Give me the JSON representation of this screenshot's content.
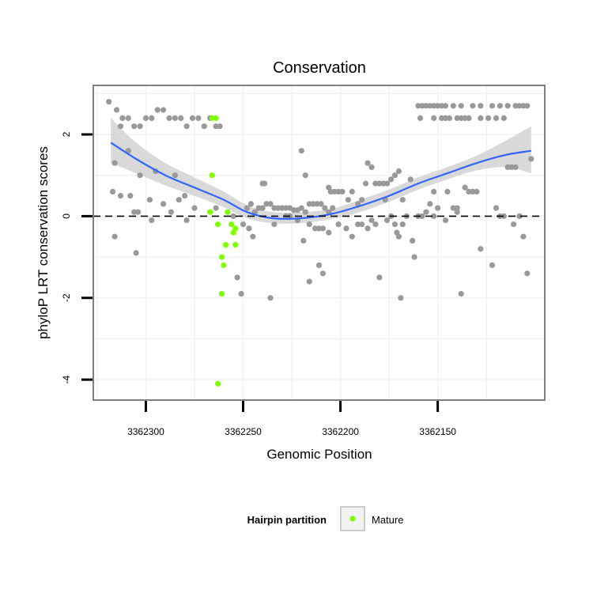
{
  "chart_data": {
    "type": "scatter",
    "title": "Conservation",
    "xlabel": "Genomic Position",
    "ylabel": "phyloP LRT conservation scores",
    "x_reversed": true,
    "xlim": [
      3362327,
      3362095
    ],
    "ylim": [
      -4.5,
      3.2
    ],
    "x_ticks": [
      3362300,
      3362250,
      3362200,
      3362150
    ],
    "x_tick_labels": [
      "3362300",
      "3362250",
      "3362200",
      "3362150"
    ],
    "y_ticks": [
      -4,
      -2,
      0,
      2
    ],
    "y_tick_labels": [
      "-4",
      "-2",
      "0",
      "2"
    ],
    "grid": true,
    "reference_line_y": 0,
    "legend": {
      "title": "Hairpin partition",
      "placement": "bottom",
      "entries": [
        {
          "label": "Mature",
          "color": "#7fff00"
        }
      ]
    },
    "colors": {
      "other": "#999999",
      "mature": "#7fff00",
      "smooth": "#3366ff",
      "band": "#d9d9d9",
      "panel_border": "#7f7f7f",
      "grid": "#f2f2f2"
    },
    "series": [
      {
        "name": "",
        "color": "#999999",
        "points": [
          [
            3362319,
            2.8
          ],
          [
            3362315,
            2.6
          ],
          [
            3362312,
            2.4
          ],
          [
            3362309,
            2.4
          ],
          [
            3362306,
            2.2
          ],
          [
            3362303,
            2.2
          ],
          [
            3362300,
            2.4
          ],
          [
            3362297,
            2.4
          ],
          [
            3362294,
            2.6
          ],
          [
            3362291,
            2.6
          ],
          [
            3362288,
            2.4
          ],
          [
            3362285,
            2.4
          ],
          [
            3362282,
            2.4
          ],
          [
            3362279,
            2.2
          ],
          [
            3362276,
            2.4
          ],
          [
            3362273,
            2.4
          ],
          [
            3362270,
            2.2
          ],
          [
            3362267,
            2.4
          ],
          [
            3362264,
            2.2
          ],
          [
            3362262,
            2.2
          ],
          [
            3362313,
            2.2
          ],
          [
            3362309,
            1.6
          ],
          [
            3362316,
            1.3
          ],
          [
            3362303,
            1.0
          ],
          [
            3362295,
            1.1
          ],
          [
            3362285,
            1.0
          ],
          [
            3362313,
            0.5
          ],
          [
            3362317,
            0.6
          ],
          [
            3362308,
            0.5
          ],
          [
            3362298,
            0.4
          ],
          [
            3362291,
            0.3
          ],
          [
            3362283,
            0.4
          ],
          [
            3362280,
            0.5
          ],
          [
            3362275,
            0.2
          ],
          [
            3362267,
            0.1
          ],
          [
            3362306,
            0.1
          ],
          [
            3362304,
            0.1
          ],
          [
            3362297,
            -0.1
          ],
          [
            3362287,
            0.1
          ],
          [
            3362279,
            -0.1
          ],
          [
            3362316,
            -0.5
          ],
          [
            3362305,
            -0.9
          ],
          [
            3362264,
            0.2
          ],
          [
            3362248,
            0.2
          ],
          [
            3362246,
            0.3
          ],
          [
            3362244,
            0.1
          ],
          [
            3362242,
            0.2
          ],
          [
            3362240,
            0.2
          ],
          [
            3362238,
            0.3
          ],
          [
            3362236,
            0.3
          ],
          [
            3362234,
            0.2
          ],
          [
            3362232,
            0.2
          ],
          [
            3362230,
            0.2
          ],
          [
            3362228,
            0.2
          ],
          [
            3362226,
            0.2
          ],
          [
            3362224,
            0.15
          ],
          [
            3362222,
            0.15
          ],
          [
            3362220,
            0.2
          ],
          [
            3362218,
            0.1
          ],
          [
            3362216,
            0.3
          ],
          [
            3362214,
            0.3
          ],
          [
            3362212,
            0.3
          ],
          [
            3362210,
            0.3
          ],
          [
            3362208,
            0.2
          ],
          [
            3362206,
            0.1
          ],
          [
            3362204,
            0.2
          ],
          [
            3362255,
            0.0
          ],
          [
            3362250,
            -0.2
          ],
          [
            3362247,
            -0.3
          ],
          [
            3362245,
            -0.5
          ],
          [
            3362240,
            0.8
          ],
          [
            3362239,
            0.8
          ],
          [
            3362234,
            -0.2
          ],
          [
            3362228,
            0.0
          ],
          [
            3362226,
            0.0
          ],
          [
            3362222,
            -0.1
          ],
          [
            3362220,
            1.6
          ],
          [
            3362219,
            -0.6
          ],
          [
            3362218,
            1.0
          ],
          [
            3362216,
            -0.2
          ],
          [
            3362213,
            -0.3
          ],
          [
            3362211,
            -0.3
          ],
          [
            3362209,
            -0.3
          ],
          [
            3362206,
            -0.4
          ],
          [
            3362253,
            -1.5
          ],
          [
            3362251,
            -1.9
          ],
          [
            3362236,
            -2.0
          ],
          [
            3362216,
            -1.6
          ],
          [
            3362211,
            -1.2
          ],
          [
            3362209,
            -1.4
          ],
          [
            3362206,
            0.7
          ],
          [
            3362205,
            0.6
          ],
          [
            3362203,
            0.6
          ],
          [
            3362201,
            0.6
          ],
          [
            3362199,
            0.6
          ],
          [
            3362196,
            0.4
          ],
          [
            3362194,
            0.6
          ],
          [
            3362191,
            0.3
          ],
          [
            3362189,
            0.4
          ],
          [
            3362187,
            0.8
          ],
          [
            3362186,
            1.3
          ],
          [
            3362184,
            1.2
          ],
          [
            3362182,
            0.8
          ],
          [
            3362180,
            0.8
          ],
          [
            3362178,
            0.8
          ],
          [
            3362176,
            0.8
          ],
          [
            3362174,
            0.9
          ],
          [
            3362172,
            1.0
          ],
          [
            3362170,
            1.1
          ],
          [
            3362168,
            0.4
          ],
          [
            3362201,
            -0.2
          ],
          [
            3362197,
            -0.3
          ],
          [
            3362194,
            -0.5
          ],
          [
            3362191,
            -0.2
          ],
          [
            3362189,
            -0.2
          ],
          [
            3362186,
            -0.3
          ],
          [
            3362184,
            -0.1
          ],
          [
            3362182,
            -0.2
          ],
          [
            3362180,
            -1.5
          ],
          [
            3362177,
            0.4
          ],
          [
            3362176,
            -0.1
          ],
          [
            3362174,
            0.0
          ],
          [
            3362172,
            -0.2
          ],
          [
            3362171,
            -0.4
          ],
          [
            3362170,
            -0.5
          ],
          [
            3362168,
            -0.2
          ],
          [
            3362166,
            0.0
          ],
          [
            3362164,
            0.9
          ],
          [
            3362163,
            -0.6
          ],
          [
            3362162,
            -1.0
          ],
          [
            3362169,
            -2.0
          ],
          [
            3362160,
            2.7
          ],
          [
            3362158,
            2.7
          ],
          [
            3362156,
            2.7
          ],
          [
            3362154,
            2.7
          ],
          [
            3362152,
            2.7
          ],
          [
            3362150,
            2.7
          ],
          [
            3362148,
            2.7
          ],
          [
            3362146,
            2.7
          ],
          [
            3362142,
            2.7
          ],
          [
            3362138,
            2.7
          ],
          [
            3362132,
            2.7
          ],
          [
            3362128,
            2.7
          ],
          [
            3362122,
            2.7
          ],
          [
            3362118,
            2.7
          ],
          [
            3362114,
            2.7
          ],
          [
            3362110,
            2.7
          ],
          [
            3362108,
            2.7
          ],
          [
            3362106,
            2.7
          ],
          [
            3362104,
            2.7
          ],
          [
            3362159,
            2.4
          ],
          [
            3362152,
            2.4
          ],
          [
            3362148,
            2.4
          ],
          [
            3362146,
            2.4
          ],
          [
            3362144,
            2.4
          ],
          [
            3362140,
            2.4
          ],
          [
            3362138,
            2.4
          ],
          [
            3362136,
            2.4
          ],
          [
            3362134,
            2.4
          ],
          [
            3362128,
            2.4
          ],
          [
            3362124,
            2.4
          ],
          [
            3362120,
            2.4
          ],
          [
            3362116,
            2.4
          ],
          [
            3362160,
            0.0
          ],
          [
            3362158,
            0.0
          ],
          [
            3362156,
            0.1
          ],
          [
            3362154,
            0.3
          ],
          [
            3362152,
            0.6
          ],
          [
            3362150,
            0.2
          ],
          [
            3362145,
            0.6
          ],
          [
            3362142,
            0.2
          ],
          [
            3362140,
            0.2
          ],
          [
            3362136,
            0.7
          ],
          [
            3362134,
            0.6
          ],
          [
            3362132,
            0.6
          ],
          [
            3362130,
            0.6
          ],
          [
            3362114,
            1.2
          ],
          [
            3362112,
            1.2
          ],
          [
            3362110,
            1.2
          ],
          [
            3362102,
            1.4
          ],
          [
            3362120,
            0.2
          ],
          [
            3362116,
            0.0
          ],
          [
            3362108,
            0.0
          ],
          [
            3362111,
            -0.2
          ],
          [
            3362106,
            -0.5
          ],
          [
            3362128,
            -0.8
          ],
          [
            3362122,
            -1.2
          ],
          [
            3362104,
            -1.4
          ],
          [
            3362138,
            -1.9
          ],
          [
            3362140,
            0.1
          ],
          [
            3362146,
            -0.1
          ],
          [
            3362152,
            0.0
          ],
          [
            3362118,
            0.0
          ]
        ]
      },
      {
        "name": "Mature",
        "color": "#7fff00",
        "points": [
          [
            3362266,
            2.4
          ],
          [
            3362264,
            2.4
          ],
          [
            3362266,
            1.0
          ],
          [
            3362267,
            0.1
          ],
          [
            3362263,
            -0.2
          ],
          [
            3362261,
            -1.0
          ],
          [
            3362259,
            -0.7
          ],
          [
            3362258,
            0.1
          ],
          [
            3362256,
            -0.2
          ],
          [
            3362255,
            -0.4
          ],
          [
            3362254,
            -0.3
          ],
          [
            3362254,
            -0.7
          ],
          [
            3362260,
            -1.2
          ],
          [
            3362261,
            -1.9
          ],
          [
            3362263,
            -4.1
          ]
        ]
      }
    ],
    "smooth": {
      "name": "",
      "x": [
        3362318,
        3362305,
        3362290,
        3362275,
        3362260,
        3362248,
        3362235,
        3362220,
        3362205,
        3362190,
        3362175,
        3362160,
        3362145,
        3362130,
        3362115,
        3362102
      ],
      "y": [
        1.8,
        1.4,
        1.0,
        0.7,
        0.4,
        0.1,
        -0.05,
        -0.05,
        0.05,
        0.25,
        0.5,
        0.8,
        1.05,
        1.3,
        1.5,
        1.6
      ],
      "lo": [
        1.3,
        1.05,
        0.75,
        0.5,
        0.22,
        -0.05,
        -0.17,
        -0.17,
        -0.07,
        0.1,
        0.35,
        0.65,
        0.9,
        1.12,
        1.2,
        1.05
      ],
      "hi": [
        2.4,
        1.8,
        1.3,
        0.95,
        0.6,
        0.27,
        0.1,
        0.1,
        0.17,
        0.4,
        0.65,
        0.95,
        1.2,
        1.48,
        1.85,
        2.2
      ]
    }
  }
}
